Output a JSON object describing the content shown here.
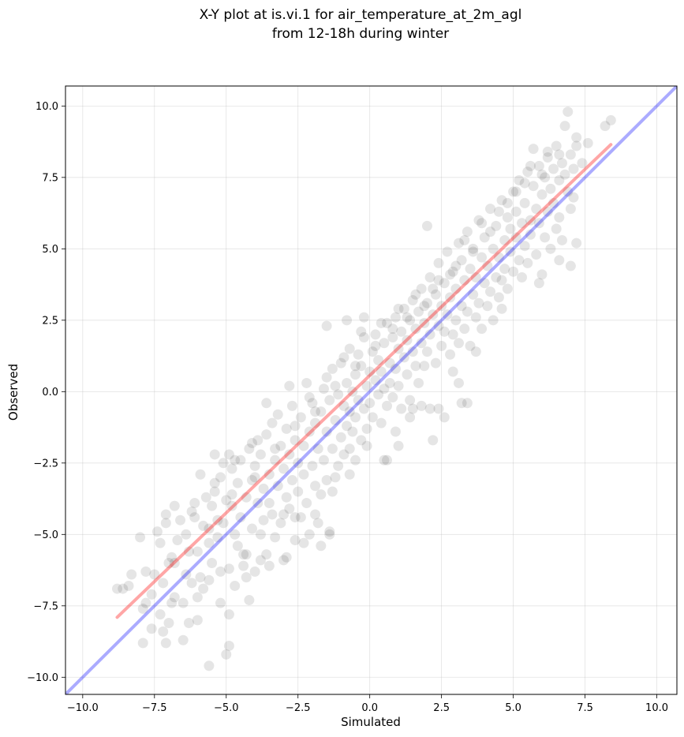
{
  "chart_data": {
    "type": "scatter",
    "title_lines": [
      "X-Y plot at is.vi.1 for air_temperature_at_2m_agl",
      "from 12-18h during winter"
    ],
    "xlabel": "Simulated",
    "ylabel": "Observed",
    "xlim": [
      -10.6,
      10.7
    ],
    "ylim": [
      -10.6,
      10.7
    ],
    "xticks": [
      -10.0,
      -7.5,
      -5.0,
      -2.5,
      0.0,
      2.5,
      5.0,
      7.5,
      10.0
    ],
    "yticks": [
      -10.0,
      -7.5,
      -5.0,
      -2.5,
      0.0,
      2.5,
      5.0,
      7.5,
      10.0
    ],
    "xtick_labels": [
      "−10.0",
      "−7.5",
      "−5.0",
      "−2.5",
      "0.0",
      "2.5",
      "5.0",
      "7.5",
      "10.0"
    ],
    "ytick_labels": [
      "−10.0",
      "−7.5",
      "−5.0",
      "−2.5",
      "0.0",
      "2.5",
      "5.0",
      "7.5",
      "10.0"
    ],
    "grid": true,
    "point_color": "#000000",
    "point_opacity": 0.1,
    "lines": [
      {
        "role": "regression",
        "color": "#ff0000",
        "opacity": 0.35,
        "x": [
          -8.8,
          8.4
        ],
        "y": [
          -7.9,
          8.65
        ]
      },
      {
        "role": "one-to-one",
        "color": "#0000ff",
        "opacity": 0.33,
        "x": [
          -10.6,
          10.7
        ],
        "y": [
          -10.6,
          10.7
        ]
      }
    ],
    "points": [
      [
        -8.8,
        -6.9
      ],
      [
        -8.6,
        -6.9
      ],
      [
        -8.4,
        -6.8
      ],
      [
        -8.3,
        -6.4
      ],
      [
        -8.0,
        -5.1
      ],
      [
        -7.9,
        -8.8
      ],
      [
        -7.9,
        -7.6
      ],
      [
        -7.8,
        -6.3
      ],
      [
        -7.6,
        -7.1
      ],
      [
        -7.6,
        -8.3
      ],
      [
        -7.5,
        -6.4
      ],
      [
        -7.4,
        -4.9
      ],
      [
        -7.3,
        -5.3
      ],
      [
        -7.3,
        -7.8
      ],
      [
        -7.2,
        -8.4
      ],
      [
        -7.2,
        -6.7
      ],
      [
        -7.1,
        -4.3
      ],
      [
        -7.1,
        -4.6
      ],
      [
        -7.0,
        -8.1
      ],
      [
        -7.0,
        -6.0
      ],
      [
        -6.9,
        -7.4
      ],
      [
        -6.9,
        -5.8
      ],
      [
        -6.8,
        -4.0
      ],
      [
        -6.8,
        -7.2
      ],
      [
        -6.7,
        -5.2
      ],
      [
        -6.6,
        -4.5
      ],
      [
        -6.5,
        -7.4
      ],
      [
        -6.4,
        -6.4
      ],
      [
        -6.4,
        -5.0
      ],
      [
        -6.3,
        -8.1
      ],
      [
        -6.2,
        -4.2
      ],
      [
        -6.2,
        -6.7
      ],
      [
        -6.1,
        -3.9
      ],
      [
        -6.0,
        -5.6
      ],
      [
        -6.0,
        -7.2
      ],
      [
        -5.9,
        -2.9
      ],
      [
        -5.9,
        -6.5
      ],
      [
        -5.8,
        -4.7
      ],
      [
        -5.8,
        -6.9
      ],
      [
        -5.7,
        -3.7
      ],
      [
        -5.6,
        -5.3
      ],
      [
        -5.6,
        -9.6
      ],
      [
        -5.5,
        -4.0
      ],
      [
        -5.5,
        -6.0
      ],
      [
        -5.4,
        -2.2
      ],
      [
        -5.4,
        -3.5
      ],
      [
        -5.3,
        -4.5
      ],
      [
        -5.3,
        -5.1
      ],
      [
        -5.2,
        -3.0
      ],
      [
        -5.2,
        -6.3
      ],
      [
        -5.1,
        -2.5
      ],
      [
        -5.1,
        -4.6
      ],
      [
        -5.0,
        -3.8
      ],
      [
        -5.0,
        -9.2
      ],
      [
        -4.9,
        -2.2
      ],
      [
        -4.9,
        -7.8
      ],
      [
        -4.9,
        -8.9
      ],
      [
        -4.8,
        -2.7
      ],
      [
        -4.8,
        -4.0
      ],
      [
        -4.7,
        -5.0
      ],
      [
        -4.7,
        -6.8
      ],
      [
        -4.6,
        -3.2
      ],
      [
        -4.6,
        -5.4
      ],
      [
        -4.5,
        -2.4
      ],
      [
        -4.5,
        -4.4
      ],
      [
        -4.4,
        -6.1
      ],
      [
        -4.3,
        -3.7
      ],
      [
        -4.3,
        -5.7
      ],
      [
        -4.2,
        -2.0
      ],
      [
        -4.2,
        -7.3
      ],
      [
        -4.1,
        -3.1
      ],
      [
        -4.1,
        -4.8
      ],
      [
        -4.0,
        -2.6
      ],
      [
        -4.0,
        -6.3
      ],
      [
        -3.9,
        -1.7
      ],
      [
        -3.9,
        -3.9
      ],
      [
        -3.8,
        -5.0
      ],
      [
        -3.8,
        -2.2
      ],
      [
        -3.7,
        -3.4
      ],
      [
        -3.7,
        -4.5
      ],
      [
        -3.6,
        -1.5
      ],
      [
        -3.6,
        -5.7
      ],
      [
        -3.5,
        -2.9
      ],
      [
        -3.5,
        -3.9
      ],
      [
        -3.4,
        -1.1
      ],
      [
        -3.4,
        -4.3
      ],
      [
        -3.3,
        -2.4
      ],
      [
        -3.3,
        -5.1
      ],
      [
        -3.2,
        -0.8
      ],
      [
        -3.2,
        -3.3
      ],
      [
        -3.1,
        -1.9
      ],
      [
        -3.1,
        -4.6
      ],
      [
        -3.0,
        -2.7
      ],
      [
        -3.0,
        -5.9
      ],
      [
        -2.9,
        -1.3
      ],
      [
        -2.9,
        -3.7
      ],
      [
        -2.8,
        -2.2
      ],
      [
        -2.8,
        -4.1
      ],
      [
        -2.7,
        -0.5
      ],
      [
        -2.7,
        -3.1
      ],
      [
        -2.6,
        -1.7
      ],
      [
        -2.6,
        -5.2
      ],
      [
        -2.5,
        -2.5
      ],
      [
        -2.5,
        -3.5
      ],
      [
        -2.4,
        -0.9
      ],
      [
        -2.4,
        -4.4
      ],
      [
        -2.3,
        -1.9
      ],
      [
        -2.3,
        -2.9
      ],
      [
        -2.2,
        0.3
      ],
      [
        -2.2,
        -3.9
      ],
      [
        -2.1,
        -1.4
      ],
      [
        -2.1,
        -5.0
      ],
      [
        -2.0,
        -0.4
      ],
      [
        -2.0,
        -2.6
      ],
      [
        -1.9,
        -1.1
      ],
      [
        -1.9,
        -3.3
      ],
      [
        -1.8,
        -2.0
      ],
      [
        -1.8,
        -4.6
      ],
      [
        -1.7,
        -0.7
      ],
      [
        -1.7,
        -3.6
      ],
      [
        -1.6,
        0.1
      ],
      [
        -1.6,
        -2.4
      ],
      [
        -1.5,
        -1.4
      ],
      [
        -1.5,
        -3.1
      ],
      [
        -1.4,
        -0.3
      ],
      [
        -1.4,
        -5.0
      ],
      [
        -1.3,
        0.8
      ],
      [
        -1.3,
        -2.0
      ],
      [
        -1.2,
        -1.0
      ],
      [
        -1.2,
        -3.0
      ],
      [
        -1.1,
        -0.1
      ],
      [
        -1.1,
        -2.6
      ],
      [
        -1.0,
        1.0
      ],
      [
        -1.0,
        -1.6
      ],
      [
        -0.9,
        -0.5
      ],
      [
        -0.9,
        -2.2
      ],
      [
        -0.8,
        0.3
      ],
      [
        -0.8,
        -1.2
      ],
      [
        -0.7,
        -0.7
      ],
      [
        -0.7,
        -2.0
      ],
      [
        -0.7,
        1.5
      ],
      [
        -0.6,
        0.0
      ],
      [
        -0.6,
        -1.4
      ],
      [
        -0.5,
        0.6
      ],
      [
        -0.5,
        -0.9
      ],
      [
        -0.5,
        -2.4
      ],
      [
        -0.4,
        1.3
      ],
      [
        -0.4,
        -0.3
      ],
      [
        -0.3,
        -1.7
      ],
      [
        -0.3,
        0.9
      ],
      [
        -0.2,
        -0.6
      ],
      [
        -0.2,
        1.9
      ],
      [
        -0.1,
        0.2
      ],
      [
        -0.1,
        -1.3
      ],
      [
        0.0,
        0.7
      ],
      [
        0.0,
        -0.4
      ],
      [
        0.1,
        1.4
      ],
      [
        0.1,
        -0.9
      ],
      [
        0.2,
        0.4
      ],
      [
        0.2,
        2.0
      ],
      [
        0.3,
        -0.1
      ],
      [
        0.3,
        1.1
      ],
      [
        0.4,
        -1.1
      ],
      [
        0.4,
        0.7
      ],
      [
        0.5,
        1.7
      ],
      [
        0.5,
        0.1
      ],
      [
        0.6,
        2.4
      ],
      [
        0.6,
        -0.5
      ],
      [
        0.7,
        1.0
      ],
      [
        0.7,
        0.3
      ],
      [
        0.8,
        1.9
      ],
      [
        0.8,
        -0.2
      ],
      [
        0.9,
        0.8
      ],
      [
        0.9,
        2.6
      ],
      [
        1.0,
        1.5
      ],
      [
        1.0,
        0.2
      ],
      [
        1.1,
        2.1
      ],
      [
        1.1,
        -0.6
      ],
      [
        1.2,
        1.2
      ],
      [
        1.2,
        2.9
      ],
      [
        1.3,
        0.6
      ],
      [
        1.3,
        1.8
      ],
      [
        1.4,
        2.5
      ],
      [
        1.4,
        -0.3
      ],
      [
        1.5,
        1.4
      ],
      [
        1.5,
        3.2
      ],
      [
        1.6,
        0.9
      ],
      [
        1.6,
        2.2
      ],
      [
        1.7,
        2.8
      ],
      [
        1.7,
        0.3
      ],
      [
        1.8,
        1.7
      ],
      [
        1.8,
        3.6
      ],
      [
        1.9,
        2.4
      ],
      [
        1.9,
        0.9
      ],
      [
        2.0,
        3.1
      ],
      [
        2.0,
        1.4
      ],
      [
        2.1,
        2.0
      ],
      [
        2.1,
        4.0
      ],
      [
        2.2,
        2.7
      ],
      [
        2.2,
        -1.7
      ],
      [
        2.3,
        3.4
      ],
      [
        2.3,
        1.0
      ],
      [
        2.4,
        2.3
      ],
      [
        2.4,
        4.5
      ],
      [
        2.5,
        3.0
      ],
      [
        2.5,
        1.6
      ],
      [
        2.6,
        3.8
      ],
      [
        2.6,
        2.1
      ],
      [
        2.7,
        2.7
      ],
      [
        2.7,
        4.9
      ],
      [
        2.8,
        3.3
      ],
      [
        2.8,
        1.3
      ],
      [
        2.9,
        2.0
      ],
      [
        2.9,
        4.2
      ],
      [
        3.0,
        3.6
      ],
      [
        3.0,
        2.5
      ],
      [
        3.1,
        5.2
      ],
      [
        3.1,
        1.7
      ],
      [
        3.2,
        3.0
      ],
      [
        3.2,
        4.6
      ],
      [
        3.3,
        2.2
      ],
      [
        3.3,
        3.9
      ],
      [
        3.4,
        5.6
      ],
      [
        3.4,
        2.8
      ],
      [
        3.5,
        4.3
      ],
      [
        3.5,
        1.6
      ],
      [
        3.6,
        3.4
      ],
      [
        3.6,
        5.0
      ],
      [
        3.7,
        2.6
      ],
      [
        3.7,
        4.0
      ],
      [
        3.8,
        6.0
      ],
      [
        3.8,
        3.1
      ],
      [
        3.9,
        4.7
      ],
      [
        3.9,
        2.2
      ],
      [
        4.0,
        3.8
      ],
      [
        4.0,
        5.4
      ],
      [
        4.1,
        3.0
      ],
      [
        4.1,
        4.4
      ],
      [
        4.2,
        6.4
      ],
      [
        4.2,
        3.5
      ],
      [
        4.3,
        5.0
      ],
      [
        4.3,
        2.5
      ],
      [
        4.4,
        4.0
      ],
      [
        4.4,
        5.8
      ],
      [
        4.5,
        3.3
      ],
      [
        4.5,
        4.7
      ],
      [
        4.6,
        6.7
      ],
      [
        4.6,
        3.9
      ],
      [
        4.7,
        5.3
      ],
      [
        4.7,
        4.3
      ],
      [
        4.8,
        6.1
      ],
      [
        4.8,
        3.6
      ],
      [
        4.9,
        4.9
      ],
      [
        4.9,
        5.7
      ],
      [
        5.0,
        7.0
      ],
      [
        5.0,
        4.2
      ],
      [
        5.1,
        5.4
      ],
      [
        5.1,
        6.3
      ],
      [
        5.2,
        4.6
      ],
      [
        5.2,
        7.4
      ],
      [
        5.3,
        5.9
      ],
      [
        5.3,
        4.0
      ],
      [
        5.4,
        6.6
      ],
      [
        5.4,
        5.1
      ],
      [
        5.5,
        7.7
      ],
      [
        5.5,
        4.5
      ],
      [
        5.6,
        6.0
      ],
      [
        5.6,
        5.5
      ],
      [
        5.7,
        7.2
      ],
      [
        5.7,
        8.5
      ],
      [
        5.8,
        6.4
      ],
      [
        5.8,
        4.8
      ],
      [
        5.9,
        7.9
      ],
      [
        5.9,
        5.9
      ],
      [
        6.0,
        6.9
      ],
      [
        6.0,
        4.1
      ],
      [
        6.1,
        7.5
      ],
      [
        6.1,
        5.4
      ],
      [
        6.2,
        8.2
      ],
      [
        6.2,
        6.3
      ],
      [
        6.3,
        7.1
      ],
      [
        6.3,
        5.0
      ],
      [
        6.4,
        7.8
      ],
      [
        6.4,
        6.6
      ],
      [
        6.5,
        8.6
      ],
      [
        6.5,
        5.7
      ],
      [
        6.6,
        7.4
      ],
      [
        6.6,
        6.1
      ],
      [
        6.7,
        8.0
      ],
      [
        6.7,
        5.3
      ],
      [
        6.8,
        7.6
      ],
      [
        6.8,
        9.3
      ],
      [
        6.9,
        7.0
      ],
      [
        6.9,
        9.8
      ],
      [
        7.0,
        8.3
      ],
      [
        7.0,
        6.4
      ],
      [
        7.0,
        4.4
      ],
      [
        7.1,
        7.8
      ],
      [
        7.1,
        6.8
      ],
      [
        7.2,
        8.6
      ],
      [
        7.2,
        5.2
      ],
      [
        7.4,
        8.0
      ],
      [
        7.6,
        8.7
      ],
      [
        8.2,
        9.3
      ],
      [
        8.4,
        9.5
      ],
      [
        6.6,
        4.6
      ],
      [
        5.9,
        3.8
      ],
      [
        4.6,
        2.9
      ],
      [
        3.7,
        1.4
      ],
      [
        2.9,
        0.7
      ],
      [
        2.4,
        -0.6
      ],
      [
        1.8,
        -0.5
      ],
      [
        1.4,
        -0.9
      ],
      [
        0.9,
        -1.4
      ],
      [
        0.5,
        -2.4
      ],
      [
        -0.1,
        -1.9
      ],
      [
        -0.7,
        -2.9
      ],
      [
        -1.3,
        -3.5
      ],
      [
        -1.9,
        -4.3
      ],
      [
        -2.3,
        -5.3
      ],
      [
        -2.9,
        -5.8
      ],
      [
        -3.5,
        -6.1
      ],
      [
        -4.3,
        -6.5
      ],
      [
        -5.2,
        -7.4
      ],
      [
        -6.0,
        -8.0
      ],
      [
        -6.5,
        -8.7
      ],
      [
        -7.1,
        -8.8
      ],
      [
        -7.8,
        -7.4
      ],
      [
        -6.3,
        -5.6
      ],
      [
        -5.6,
        -4.8
      ],
      [
        -4.8,
        -3.6
      ],
      [
        -4.0,
        -3.0
      ],
      [
        -3.3,
        -2.0
      ],
      [
        -2.6,
        -1.2
      ],
      [
        -1.9,
        -0.7
      ],
      [
        -1.2,
        0.2
      ],
      [
        -0.5,
        0.9
      ],
      [
        0.2,
        1.6
      ],
      [
        0.8,
        2.2
      ],
      [
        1.3,
        2.6
      ],
      [
        1.9,
        3.0
      ],
      [
        2.4,
        3.9
      ],
      [
        3.0,
        4.4
      ],
      [
        3.6,
        4.9
      ],
      [
        4.2,
        5.6
      ],
      [
        4.8,
        6.6
      ],
      [
        5.4,
        7.3
      ],
      [
        6.0,
        7.6
      ],
      [
        6.6,
        8.3
      ],
      [
        7.2,
        8.9
      ],
      [
        -6.8,
        -6.0
      ],
      [
        -6.1,
        -4.4
      ],
      [
        -5.4,
        -3.2
      ],
      [
        -4.7,
        -2.4
      ],
      [
        -4.1,
        -1.8
      ],
      [
        -3.6,
        -0.4
      ],
      [
        -2.8,
        0.2
      ],
      [
        -2.1,
        -0.2
      ],
      [
        -1.5,
        0.5
      ],
      [
        -0.9,
        1.2
      ],
      [
        -0.3,
        2.1
      ],
      [
        0.4,
        2.4
      ],
      [
        1.0,
        2.9
      ],
      [
        1.6,
        3.4
      ],
      [
        2.2,
        3.6
      ],
      [
        2.8,
        4.1
      ],
      [
        3.3,
        5.3
      ],
      [
        3.9,
        5.9
      ],
      [
        4.5,
        6.3
      ],
      [
        5.1,
        7.0
      ],
      [
        5.6,
        7.9
      ],
      [
        6.2,
        8.4
      ],
      [
        2.0,
        5.8
      ],
      [
        -1.5,
        2.3
      ],
      [
        -0.8,
        2.5
      ],
      [
        -0.2,
        2.6
      ],
      [
        0.6,
        -2.4
      ],
      [
        1.0,
        -1.9
      ],
      [
        1.5,
        -0.6
      ],
      [
        2.1,
        -0.6
      ],
      [
        2.6,
        -0.9
      ],
      [
        3.1,
        0.3
      ],
      [
        3.4,
        -0.4
      ],
      [
        3.2,
        -0.4
      ],
      [
        -3.0,
        -4.3
      ],
      [
        -1.7,
        -5.4
      ],
      [
        -1.4,
        -4.9
      ],
      [
        -2.6,
        -4.4
      ],
      [
        -3.8,
        -5.9
      ],
      [
        -4.4,
        -5.7
      ],
      [
        -4.9,
        -6.2
      ],
      [
        -5.6,
        -6.6
      ]
    ]
  }
}
